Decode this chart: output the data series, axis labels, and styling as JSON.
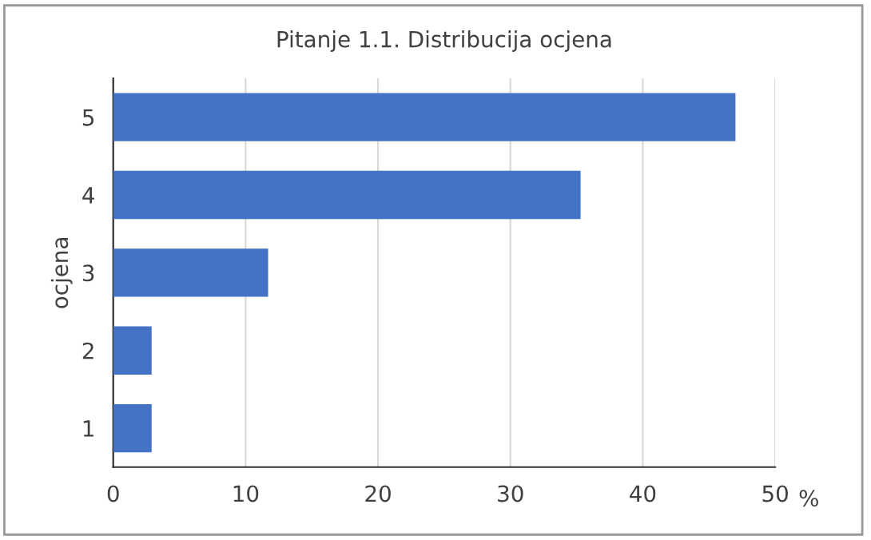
{
  "chart_data": {
    "type": "bar",
    "orientation": "horizontal",
    "title": "Pitanje 1.1. Distribucija ocjena",
    "xlabel": "%",
    "ylabel": "ocjena",
    "categories": [
      "5",
      "4",
      "3",
      "2",
      "1"
    ],
    "values": [
      47.0,
      35.3,
      11.7,
      2.9,
      2.9
    ],
    "color": "#4472c4",
    "xlim": [
      0,
      50
    ],
    "xticks": [
      0,
      10,
      20,
      30,
      40,
      50
    ],
    "grid": "x",
    "legend": false
  }
}
